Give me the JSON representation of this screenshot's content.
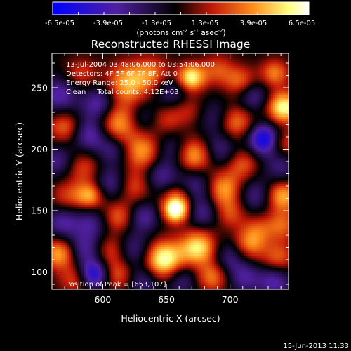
{
  "chart_data": {
    "type": "heatmap",
    "title": "Reconstructed RHESSI Image",
    "xlabel": "Heliocentric X (arcsec)",
    "ylabel": "Heliocentric Y (arcsec)",
    "xlim": [
      560,
      746
    ],
    "ylim": [
      86,
      278
    ],
    "x_ticks": [
      600,
      650,
      700
    ],
    "y_ticks": [
      100,
      150,
      200,
      250
    ],
    "colorbar": {
      "min": -6.5e-05,
      "max": 6.5e-05,
      "ticks": [
        "-6.5e-05",
        "-3.9e-05",
        "-1.3e-05",
        "1.3e-05",
        "3.9e-05",
        "6.5e-05"
      ],
      "unit_prefix": "(photons cm",
      "unit_exp1": "-2",
      "unit_mid": " s",
      "unit_exp2": "-1",
      "unit_mid2": " asec",
      "unit_exp3": "-2",
      "unit_suffix": ")",
      "colors": [
        "#0000ff",
        "#5020a0",
        "#000000",
        "#c01808",
        "#ff8c1a",
        "#ffff80",
        "#ffffff"
      ]
    },
    "info_lines": [
      "13-Jul-2004 03:48:06.000 to 03:54:06.000",
      "Detectors: 4F 5F 6F 7F 8F, Att 0",
      "Energy Range: 25.0 - 50.0 keV",
      "Clean     Total counts: 4.12E+03"
    ],
    "peak_text": "Position of Peak = [653,107]",
    "sources": [
      {
        "x": 566,
        "y": 244,
        "v": -0.5,
        "s": 10
      },
      {
        "x": 583,
        "y": 262,
        "v": 0.35,
        "s": 9
      },
      {
        "x": 598,
        "y": 236,
        "v": -0.6,
        "s": 10
      },
      {
        "x": 620,
        "y": 254,
        "v": 0.7,
        "s": 12
      },
      {
        "x": 640,
        "y": 262,
        "v": 0.45,
        "s": 10
      },
      {
        "x": 655,
        "y": 248,
        "v": -0.4,
        "s": 10
      },
      {
        "x": 669,
        "y": 258,
        "v": 0.95,
        "s": 8
      },
      {
        "x": 690,
        "y": 265,
        "v": 0.4,
        "s": 9
      },
      {
        "x": 708,
        "y": 255,
        "v": 0.5,
        "s": 9
      },
      {
        "x": 718,
        "y": 243,
        "v": -0.45,
        "s": 9
      },
      {
        "x": 735,
        "y": 262,
        "v": 0.55,
        "s": 8
      },
      {
        "x": 742,
        "y": 234,
        "v": 0.95,
        "s": 9
      },
      {
        "x": 570,
        "y": 218,
        "v": 0.5,
        "s": 9
      },
      {
        "x": 590,
        "y": 212,
        "v": -0.55,
        "s": 10
      },
      {
        "x": 612,
        "y": 222,
        "v": 0.75,
        "s": 12
      },
      {
        "x": 630,
        "y": 225,
        "v": -0.35,
        "s": 10
      },
      {
        "x": 650,
        "y": 224,
        "v": 0.35,
        "s": 9
      },
      {
        "x": 668,
        "y": 232,
        "v": 0.3,
        "s": 9
      },
      {
        "x": 689,
        "y": 226,
        "v": -0.35,
        "s": 10
      },
      {
        "x": 704,
        "y": 222,
        "v": 0.6,
        "s": 10
      },
      {
        "x": 727,
        "y": 208,
        "v": -0.9,
        "s": 9
      },
      {
        "x": 742,
        "y": 205,
        "v": 0.45,
        "s": 8
      },
      {
        "x": 565,
        "y": 190,
        "v": -0.4,
        "s": 9
      },
      {
        "x": 585,
        "y": 185,
        "v": 0.4,
        "s": 10
      },
      {
        "x": 608,
        "y": 200,
        "v": -0.4,
        "s": 9
      },
      {
        "x": 632,
        "y": 198,
        "v": 0.65,
        "s": 11
      },
      {
        "x": 653,
        "y": 200,
        "v": -0.35,
        "s": 10
      },
      {
        "x": 672,
        "y": 195,
        "v": 0.7,
        "s": 10
      },
      {
        "x": 692,
        "y": 200,
        "v": -0.4,
        "s": 10
      },
      {
        "x": 710,
        "y": 188,
        "v": 0.45,
        "s": 9
      },
      {
        "x": 740,
        "y": 185,
        "v": -0.35,
        "s": 9
      },
      {
        "x": 572,
        "y": 162,
        "v": 0.35,
        "s": 9
      },
      {
        "x": 590,
        "y": 162,
        "v": 0.7,
        "s": 8
      },
      {
        "x": 606,
        "y": 172,
        "v": -0.45,
        "s": 10
      },
      {
        "x": 625,
        "y": 170,
        "v": 0.45,
        "s": 10
      },
      {
        "x": 645,
        "y": 178,
        "v": -0.45,
        "s": 10
      },
      {
        "x": 659,
        "y": 160,
        "v": 0.5,
        "s": 9
      },
      {
        "x": 673,
        "y": 170,
        "v": -0.45,
        "s": 10
      },
      {
        "x": 695,
        "y": 168,
        "v": 0.65,
        "s": 10
      },
      {
        "x": 720,
        "y": 162,
        "v": -0.4,
        "s": 10
      },
      {
        "x": 741,
        "y": 162,
        "v": 0.7,
        "s": 9
      },
      {
        "x": 568,
        "y": 140,
        "v": -0.45,
        "s": 9
      },
      {
        "x": 591,
        "y": 140,
        "v": -0.4,
        "s": 10
      },
      {
        "x": 612,
        "y": 145,
        "v": 0.5,
        "s": 9
      },
      {
        "x": 632,
        "y": 145,
        "v": -0.45,
        "s": 9
      },
      {
        "x": 657,
        "y": 150,
        "v": 0.95,
        "s": 7
      },
      {
        "x": 679,
        "y": 148,
        "v": -0.4,
        "s": 9
      },
      {
        "x": 700,
        "y": 148,
        "v": 0.4,
        "s": 9
      },
      {
        "x": 722,
        "y": 135,
        "v": 0.35,
        "s": 9
      },
      {
        "x": 741,
        "y": 138,
        "v": 0.45,
        "s": 9
      },
      {
        "x": 566,
        "y": 115,
        "v": 0.7,
        "s": 9
      },
      {
        "x": 585,
        "y": 118,
        "v": -0.45,
        "s": 10
      },
      {
        "x": 606,
        "y": 118,
        "v": 0.4,
        "s": 9
      },
      {
        "x": 625,
        "y": 118,
        "v": -0.4,
        "s": 10
      },
      {
        "x": 648,
        "y": 110,
        "v": 1.0,
        "s": 11
      },
      {
        "x": 675,
        "y": 120,
        "v": 0.85,
        "s": 10
      },
      {
        "x": 700,
        "y": 112,
        "v": -0.4,
        "s": 10
      },
      {
        "x": 715,
        "y": 122,
        "v": 0.55,
        "s": 9
      },
      {
        "x": 738,
        "y": 112,
        "v": 0.45,
        "s": 9
      },
      {
        "x": 578,
        "y": 94,
        "v": 0.4,
        "s": 9
      },
      {
        "x": 593,
        "y": 98,
        "v": -0.8,
        "s": 8
      },
      {
        "x": 612,
        "y": 98,
        "v": 0.45,
        "s": 9
      },
      {
        "x": 632,
        "y": 93,
        "v": -0.4,
        "s": 9
      },
      {
        "x": 662,
        "y": 94,
        "v": -0.4,
        "s": 9
      },
      {
        "x": 686,
        "y": 96,
        "v": 0.55,
        "s": 9
      },
      {
        "x": 712,
        "y": 95,
        "v": -0.4,
        "s": 9
      },
      {
        "x": 735,
        "y": 92,
        "v": -0.5,
        "s": 9
      }
    ]
  },
  "footer": {
    "timestamp": "15-Jun-2013 11:33"
  }
}
